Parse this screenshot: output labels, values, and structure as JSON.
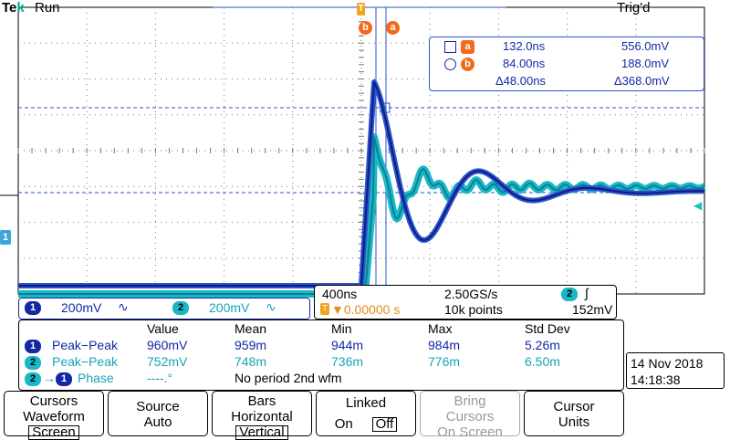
{
  "header": {
    "brand_t": "Te",
    "brand_k": "k",
    "state": "Run",
    "trigger_status": "Trig'd"
  },
  "cursors": {
    "a": {
      "label": "a",
      "time": "132.0ns",
      "volts": "556.0mV"
    },
    "b": {
      "label": "b",
      "time": "84.00ns",
      "volts": "188.0mV"
    },
    "delta": {
      "time": "Δ48.00ns",
      "volts": "Δ368.0mV"
    }
  },
  "channels": [
    {
      "num": "1",
      "scale": "200mV",
      "coupling": "∿",
      "color": "#1428a5"
    },
    {
      "num": "2",
      "scale": "200mV",
      "coupling": "∿",
      "color": "#17a3b5"
    }
  ],
  "timebase": {
    "scale": "400ns",
    "sample_rate": "2.50GS/s",
    "trigger_source": "2",
    "trigger_icon": "∫",
    "trigger_pos": "▼0.00000 s",
    "record_length": "10k points",
    "trigger_level": "152mV"
  },
  "measurements": {
    "headers": [
      "Value",
      "Mean",
      "Min",
      "Max",
      "Std Dev"
    ],
    "rows": [
      {
        "ch": "1",
        "name": "Peak−Peak",
        "value": "960mV",
        "mean": "959m",
        "min": "944m",
        "max": "984m",
        "std": "5.26m"
      },
      {
        "ch": "2",
        "name": "Peak−Peak",
        "value": "752mV",
        "mean": "748m",
        "min": "736m",
        "max": "776m",
        "std": "6.50m"
      }
    ],
    "phase": {
      "from": "2",
      "to": "1",
      "name": "Phase",
      "value": "----.°",
      "note": "No period 2nd wfm"
    }
  },
  "datetime": {
    "date": "14 Nov 2018",
    "time": "14:18:38"
  },
  "menu": [
    {
      "line1": "Cursors",
      "line2": "Waveform",
      "line3": "Screen"
    },
    {
      "line1": "Source",
      "line2": "Auto",
      "line3": ""
    },
    {
      "line1": "Bars",
      "line2": "Horizontal",
      "line3": "Vertical"
    },
    {
      "line1": "Linked",
      "on": "On",
      "off": "Off"
    },
    {
      "line1": "Bring",
      "line2": "Cursors",
      "line3": "On Screen"
    },
    {
      "line1": "Cursor",
      "line2": "Units",
      "line3": ""
    }
  ],
  "colors": {
    "ch1": "#1428a5",
    "ch2": "#17a3b5",
    "cursor_marker": "#f36a1c"
  }
}
